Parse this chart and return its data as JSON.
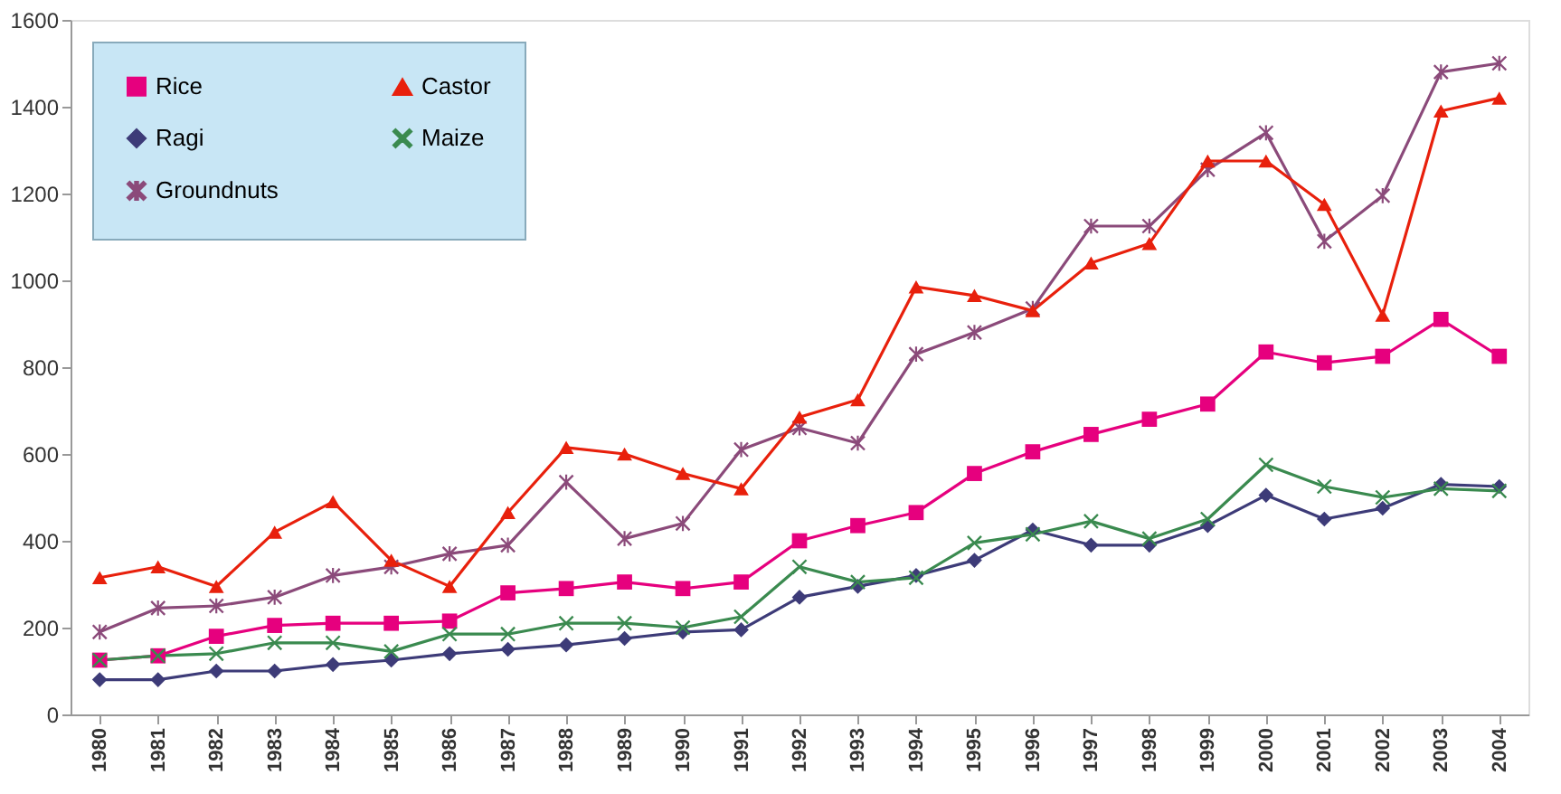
{
  "chart_data": {
    "type": "line",
    "categories": [
      "1980",
      "1981",
      "1982",
      "1983",
      "1984",
      "1985",
      "1986",
      "1987",
      "1988",
      "1989",
      "1990",
      "1991",
      "1992",
      "1993",
      "1994",
      "1995",
      "1996",
      "1997",
      "1998",
      "1999",
      "2000",
      "2001",
      "2002",
      "2003",
      "2004"
    ],
    "series": [
      {
        "name": "Rice",
        "color": "#e6007e",
        "marker": "square",
        "values": [
          125,
          135,
          180,
          205,
          210,
          210,
          215,
          280,
          290,
          305,
          290,
          305,
          400,
          435,
          465,
          555,
          605,
          645,
          680,
          715,
          835,
          810,
          825,
          910,
          825
        ]
      },
      {
        "name": "Ragi",
        "color": "#3d3b78",
        "marker": "diamond",
        "values": [
          80,
          80,
          100,
          100,
          115,
          125,
          140,
          150,
          160,
          175,
          190,
          195,
          270,
          295,
          320,
          355,
          425,
          390,
          390,
          435,
          505,
          450,
          475,
          530,
          525
        ]
      },
      {
        "name": "Groundnuts",
        "color": "#8b4a7a",
        "marker": "star",
        "values": [
          190,
          245,
          250,
          270,
          320,
          340,
          370,
          390,
          535,
          405,
          440,
          610,
          660,
          625,
          830,
          880,
          935,
          1125,
          1125,
          1255,
          1340,
          1090,
          1195,
          1480,
          1500
        ]
      },
      {
        "name": "Castor",
        "color": "#e8200c",
        "marker": "triangle",
        "values": [
          315,
          340,
          295,
          420,
          490,
          355,
          295,
          465,
          615,
          600,
          555,
          520,
          685,
          725,
          985,
          965,
          930,
          1040,
          1085,
          1275,
          1275,
          1175,
          920,
          1390,
          1420
        ]
      },
      {
        "name": "Maize",
        "color": "#3a8a4f",
        "marker": "cross",
        "values": [
          125,
          135,
          140,
          165,
          165,
          145,
          185,
          185,
          210,
          210,
          200,
          225,
          340,
          305,
          315,
          395,
          415,
          445,
          405,
          450,
          575,
          525,
          500,
          520,
          515
        ]
      }
    ],
    "ylim": [
      0,
      1600
    ],
    "yticks": [
      0,
      200,
      400,
      600,
      800,
      1000,
      1200,
      1400,
      1600
    ],
    "legend": "top left",
    "grid": false,
    "line_style": "solid"
  }
}
